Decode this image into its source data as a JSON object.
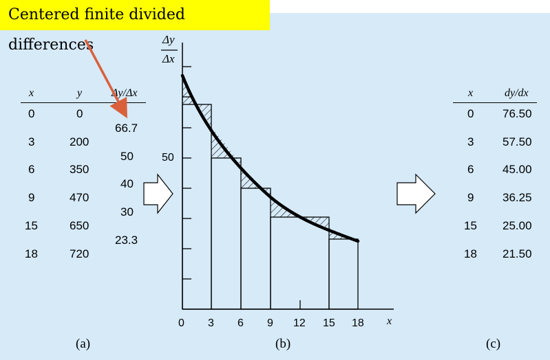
{
  "title": "Centered finite divided differences",
  "colors": {
    "panel": "#d6eaf8",
    "highlight": "#ffff00",
    "arrow": "#d9603b"
  },
  "table_a": {
    "headers": {
      "x": "x",
      "y": "y",
      "dydx": "Δy/Δx"
    },
    "x": [
      "0",
      "3",
      "6",
      "9",
      "15",
      "18"
    ],
    "y": [
      "0",
      "200",
      "350",
      "470",
      "650",
      "720"
    ],
    "diffs": [
      "66.7",
      "50",
      "40",
      "30",
      "23.3"
    ],
    "caption": "(a)"
  },
  "chart": {
    "ylabel_num": "Δy",
    "ylabel_den": "Δx",
    "xlabel": "x",
    "xticks": [
      "0",
      "3",
      "6",
      "9",
      "12",
      "15",
      "18"
    ],
    "ytick_label": "50",
    "caption": "(b)"
  },
  "table_c": {
    "headers": {
      "x": "x",
      "dydx": "dy/dx"
    },
    "x": [
      "0",
      "3",
      "6",
      "9",
      "15",
      "18"
    ],
    "dydx": [
      "76.50",
      "57.50",
      "45.00",
      "36.25",
      "25.00",
      "21.50"
    ],
    "caption": "(c)"
  }
}
